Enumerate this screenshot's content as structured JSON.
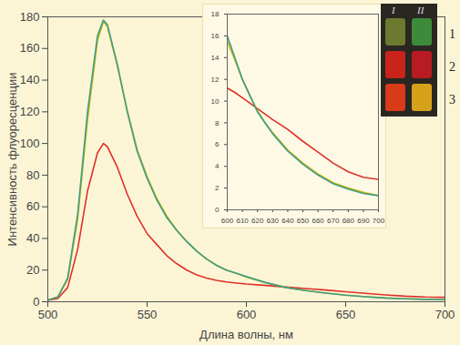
{
  "chart_data": [
    {
      "type": "line",
      "x_label": "Длина волны, нм",
      "y_label": "Интенсивность флуоресценции",
      "x": [
        500,
        505,
        510,
        515,
        520,
        525,
        528,
        530,
        535,
        540,
        545,
        550,
        555,
        560,
        565,
        570,
        575,
        580,
        585,
        590,
        595,
        600,
        610,
        620,
        630,
        640,
        650,
        660,
        670,
        680,
        690,
        700
      ],
      "series": [
        {
          "color": "#e0302a",
          "values": [
            1,
            2,
            9,
            33,
            70,
            94,
            100,
            98,
            85,
            68,
            54,
            43,
            36,
            29,
            24,
            20,
            17,
            15,
            13.5,
            12.5,
            11.8,
            11.2,
            10.3,
            9.3,
            8.3,
            7.4,
            6.3,
            5.3,
            4.3,
            3.5,
            3.0,
            2.8
          ]
        },
        {
          "color": "#c9b800",
          "values": [
            1,
            3,
            14,
            52,
            115,
            165,
            177,
            174,
            149,
            121,
            96,
            79,
            65,
            54,
            45,
            38,
            32,
            27,
            23,
            20,
            18,
            15.5,
            12,
            9,
            7,
            5.5,
            4.2,
            3.2,
            2.4,
            1.9,
            1.5,
            1.3
          ]
        },
        {
          "color": "#3f9c8a",
          "values": [
            1,
            3,
            15,
            55,
            120,
            168,
            178,
            175,
            150,
            120,
            95,
            78,
            64,
            53,
            45,
            38,
            32,
            27,
            23,
            20,
            18,
            16,
            12,
            9,
            7,
            5.5,
            4.2,
            3.2,
            2.4,
            1.9,
            1.5,
            1.3
          ]
        }
      ],
      "xlim": [
        500,
        700
      ],
      "xticks": [
        500,
        550,
        600,
        650,
        700
      ],
      "ylim": [
        0,
        180
      ],
      "yticks": [
        0,
        20,
        40,
        60,
        80,
        100,
        120,
        140,
        160,
        180
      ],
      "grid": false,
      "annotations": {
        "columns": [
          "I",
          "II"
        ],
        "rows": [
          "1",
          "2",
          "3"
        ]
      }
    },
    {
      "type": "line",
      "x": [
        600,
        605,
        610,
        615,
        620,
        625,
        630,
        640,
        650,
        660,
        670,
        680,
        690,
        700
      ],
      "series": [
        {
          "color": "#e0302a",
          "values": [
            11.2,
            10.8,
            10.3,
            9.8,
            9.3,
            8.8,
            8.3,
            7.4,
            6.3,
            5.3,
            4.3,
            3.5,
            3.0,
            2.8
          ]
        },
        {
          "color": "#c9b800",
          "values": [
            15.5,
            13.8,
            12,
            10.5,
            9.1,
            8,
            7.1,
            5.5,
            4.3,
            3.3,
            2.5,
            2.0,
            1.6,
            1.3
          ]
        },
        {
          "color": "#3f9c8a",
          "values": [
            16,
            14,
            12,
            10.5,
            9,
            8,
            7,
            5.4,
            4.2,
            3.2,
            2.4,
            1.9,
            1.5,
            1.3
          ]
        }
      ],
      "xlim": [
        600,
        700
      ],
      "xticks": [
        600,
        610,
        620,
        630,
        640,
        650,
        660,
        670,
        680,
        690,
        700
      ],
      "ylim": [
        0,
        18
      ],
      "yticks": [
        0,
        2,
        4,
        6,
        8,
        10,
        12,
        14,
        16,
        18
      ],
      "grid": false
    }
  ]
}
